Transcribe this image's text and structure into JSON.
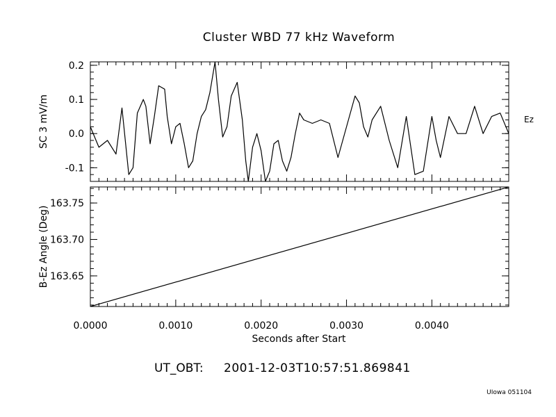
{
  "title": "Cluster WBD 77 kHz Waveform",
  "timestamp_label": "UT_OBT:",
  "timestamp_value": "2001-12-03T10:57:51.869841",
  "credit": "UIowa 051104",
  "chart_data": [
    {
      "type": "line",
      "ylabel": "SC 3 mV/m",
      "right_label": "Ez",
      "xlim": [
        0.0,
        0.0049
      ],
      "ylim": [
        -0.14,
        0.21
      ],
      "yticks": [
        -0.1,
        0.0,
        0.1,
        0.2
      ],
      "ytick_labels": [
        "-0.1",
        "0.0",
        "0.1",
        "0.2"
      ],
      "series": [
        {
          "x": [
            0.0,
            0.0001,
            0.0002,
            0.0003,
            0.00037,
            0.00045,
            0.0005,
            0.00055,
            0.00062,
            0.00065,
            0.0007,
            0.00075,
            0.0008,
            0.00087,
            0.0009,
            0.00095,
            0.001,
            0.00105,
            0.0011,
            0.00115,
            0.0012,
            0.00125,
            0.0013,
            0.00135,
            0.0014,
            0.00146,
            0.0015,
            0.00155,
            0.0016,
            0.00165,
            0.00172,
            0.00178,
            0.00182,
            0.00185,
            0.0019,
            0.00195,
            0.002,
            0.00205,
            0.0021,
            0.00215,
            0.0022,
            0.00225,
            0.0023,
            0.00235,
            0.0024,
            0.00245,
            0.0025,
            0.0026,
            0.0027,
            0.0028,
            0.0029,
            0.003,
            0.0031,
            0.00315,
            0.0032,
            0.00325,
            0.0033,
            0.0034,
            0.0035,
            0.0036,
            0.0037,
            0.0038,
            0.0039,
            0.004,
            0.00405,
            0.0041,
            0.0042,
            0.0043,
            0.0044,
            0.0045,
            0.0046,
            0.0047,
            0.0048,
            0.0049
          ],
          "values": [
            0.02,
            -0.04,
            -0.02,
            -0.06,
            0.075,
            -0.12,
            -0.1,
            0.06,
            0.1,
            0.08,
            -0.03,
            0.05,
            0.14,
            0.13,
            0.05,
            -0.03,
            0.02,
            0.03,
            -0.03,
            -0.1,
            -0.08,
            0.0,
            0.05,
            0.07,
            0.12,
            0.21,
            0.1,
            -0.01,
            0.02,
            0.11,
            0.15,
            0.04,
            -0.08,
            -0.14,
            -0.04,
            0.0,
            -0.05,
            -0.14,
            -0.11,
            -0.03,
            -0.02,
            -0.08,
            -0.11,
            -0.07,
            0.0,
            0.06,
            0.04,
            0.03,
            0.04,
            0.03,
            -0.07,
            0.02,
            0.11,
            0.09,
            0.02,
            -0.01,
            0.04,
            0.08,
            -0.02,
            -0.1,
            0.05,
            -0.12,
            -0.11,
            0.05,
            -0.02,
            -0.07,
            0.05,
            0.0,
            0.0,
            0.08,
            0.0,
            0.05,
            0.06,
            0.0
          ]
        }
      ]
    },
    {
      "type": "line",
      "xlabel": "Seconds after Start",
      "ylabel": "B-Ez Angle (Deg)",
      "xlim": [
        0.0,
        0.0049
      ],
      "ylim": [
        163.608,
        163.772
      ],
      "xticks": [
        0.0,
        0.001,
        0.002,
        0.003,
        0.004
      ],
      "xtick_labels": [
        "0.0000",
        "0.0010",
        "0.0020",
        "0.0030",
        "0.0040"
      ],
      "yticks": [
        163.65,
        163.7,
        163.75
      ],
      "ytick_labels": [
        "163.65",
        "163.70",
        "163.75"
      ],
      "series": [
        {
          "x": [
            0.0,
            0.0049
          ],
          "values": [
            163.608,
            163.772
          ]
        }
      ]
    }
  ]
}
